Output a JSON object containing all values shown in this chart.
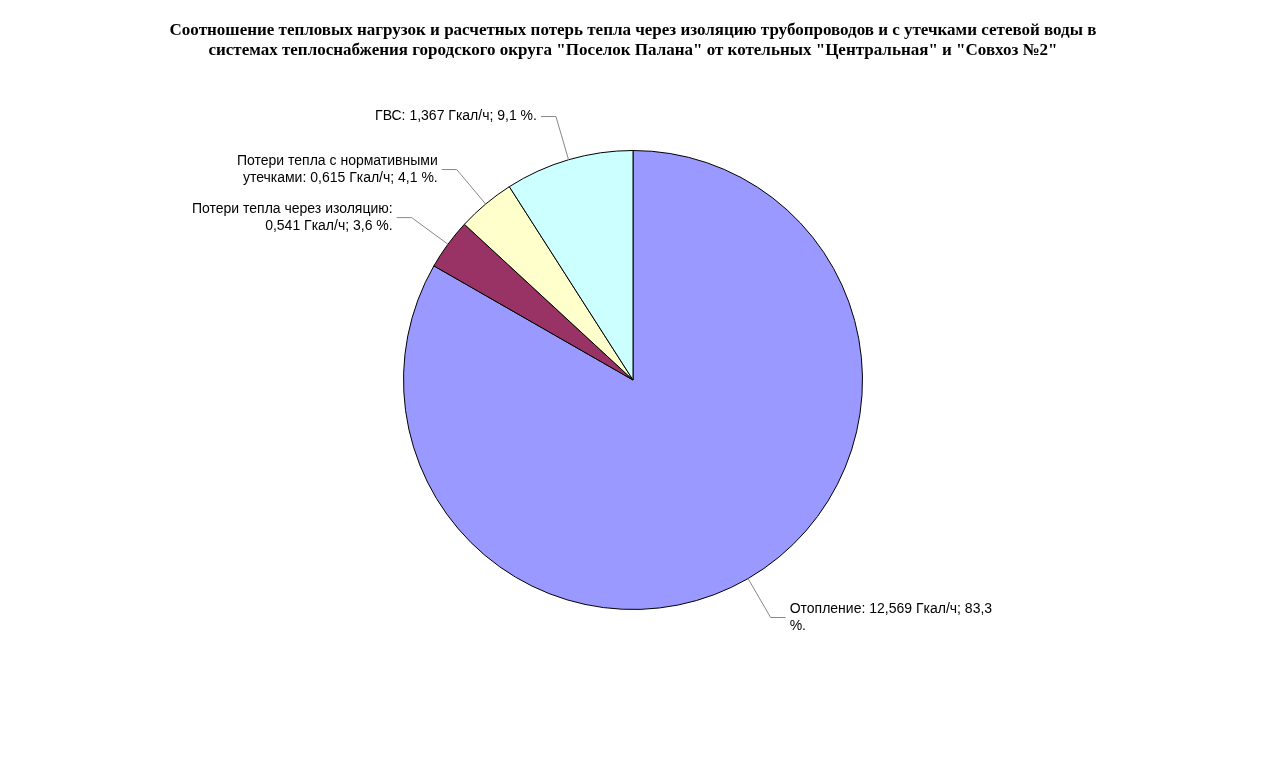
{
  "chart_data": {
    "type": "pie",
    "title": "Соотношение тепловых нагрузок и расчетных потерь тепла через изоляцию трубопроводов и с утечками сетевой воды в системах теплоснабжения городского округа \"Поселок Палана\" от котельных \"Центральная\" и \"Совхоз №2\"",
    "categories": [
      "Отопление: 12,569 Гкал/ч; 83,3 %.",
      "Потери тепла через изоляцию: 0,541 Гкал/ч; 3,6 %.",
      "Потери тепла с нормативными утечками: 0,615 Гкал/ч; 4,1 %.",
      "ГВС: 1,367 Гкал/ч; 9,1 %."
    ],
    "values": [
      12.569,
      0.541,
      0.615,
      1.367
    ],
    "colors": [
      "#9999ff",
      "#993366",
      "#ffffcc",
      "#ccffff"
    ],
    "legend": false
  }
}
